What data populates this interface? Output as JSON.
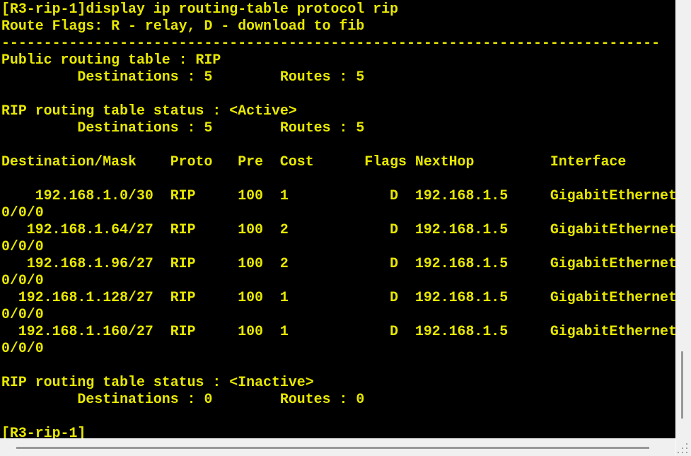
{
  "terminal": {
    "colors": {
      "background": "#000000",
      "foreground": "#e8e800",
      "chrome": "#f0f0f0",
      "scrollbar_thumb": "#999999"
    },
    "lines": [
      "[R3-rip-1]display ip routing-table protocol rip",
      "Route Flags: R - relay, D - download to fib",
      "------------------------------------------------------------------------------",
      "Public routing table : RIP",
      "         Destinations : 5        Routes : 5",
      "",
      "RIP routing table status : <Active>",
      "         Destinations : 5        Routes : 5",
      "",
      "Destination/Mask    Proto   Pre  Cost      Flags NextHop         Interface",
      "",
      "    192.168.1.0/30  RIP     100  1            D  192.168.1.5     GigabitEthernet",
      "0/0/0",
      "   192.168.1.64/27  RIP     100  2            D  192.168.1.5     GigabitEthernet",
      "0/0/0",
      "   192.168.1.96/27  RIP     100  2            D  192.168.1.5     GigabitEthernet",
      "0/0/0",
      "  192.168.1.128/27  RIP     100  1            D  192.168.1.5     GigabitEthernet",
      "0/0/0",
      "  192.168.1.160/27  RIP     100  1            D  192.168.1.5     GigabitEthernet",
      "0/0/0",
      "",
      "RIP routing table status : <Inactive>",
      "         Destinations : 0        Routes : 0",
      "",
      "[R3-rip-1]"
    ]
  },
  "session": {
    "prompt": "[R3-rip-1]",
    "command": "display ip routing-table protocol rip",
    "route_flags_legend": "R - relay, D - download to fib",
    "public_table": {
      "name": "RIP",
      "destinations": 5,
      "routes": 5
    },
    "tables": [
      {
        "status": "<Active>",
        "destinations": 5,
        "routes": 5
      },
      {
        "status": "<Inactive>",
        "destinations": 0,
        "routes": 0
      }
    ],
    "columns": [
      "Destination/Mask",
      "Proto",
      "Pre",
      "Cost",
      "Flags",
      "NextHop",
      "Interface"
    ],
    "routes": [
      {
        "destination_mask": "192.168.1.0/30",
        "proto": "RIP",
        "pre": 100,
        "cost": 1,
        "flags": "D",
        "nexthop": "192.168.1.5",
        "interface": "GigabitEthernet0/0/0"
      },
      {
        "destination_mask": "192.168.1.64/27",
        "proto": "RIP",
        "pre": 100,
        "cost": 2,
        "flags": "D",
        "nexthop": "192.168.1.5",
        "interface": "GigabitEthernet0/0/0"
      },
      {
        "destination_mask": "192.168.1.96/27",
        "proto": "RIP",
        "pre": 100,
        "cost": 2,
        "flags": "D",
        "nexthop": "192.168.1.5",
        "interface": "GigabitEthernet0/0/0"
      },
      {
        "destination_mask": "192.168.1.128/27",
        "proto": "RIP",
        "pre": 100,
        "cost": 1,
        "flags": "D",
        "nexthop": "192.168.1.5",
        "interface": "GigabitEthernet0/0/0"
      },
      {
        "destination_mask": "192.168.1.160/27",
        "proto": "RIP",
        "pre": 100,
        "cost": 1,
        "flags": "D",
        "nexthop": "192.168.1.5",
        "interface": "GigabitEthernet0/0/0"
      }
    ]
  }
}
